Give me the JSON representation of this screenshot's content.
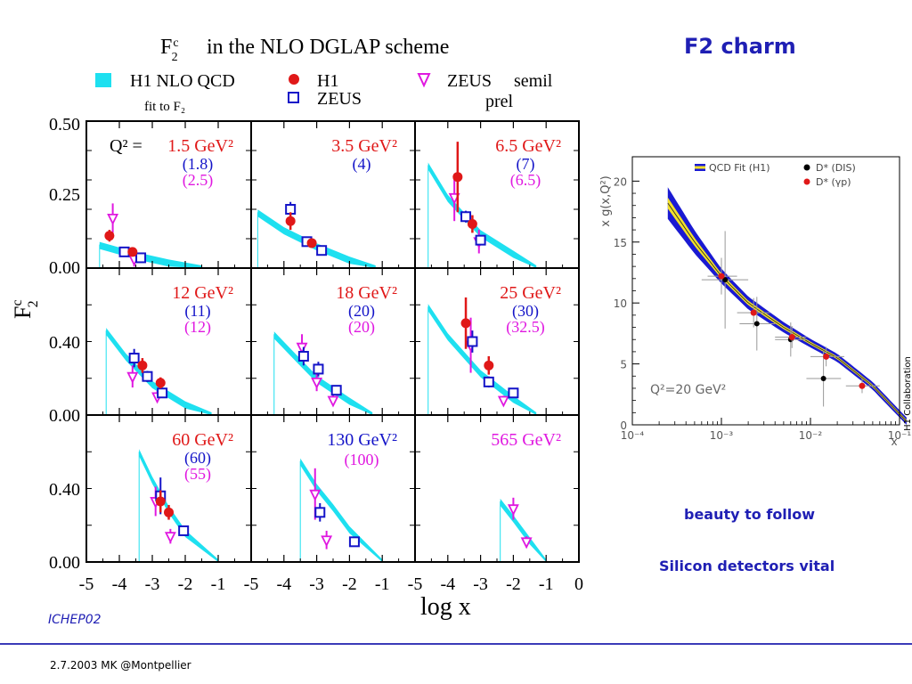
{
  "slide": {
    "title": "F2 charm",
    "note_beauty": "beauty to follow",
    "note_silicon": "Silicon detectors vital",
    "conference": "ICHEP02",
    "footer": "2.7.2003 MK @Montpellier",
    "colors": {
      "title": "#1f1fb4",
      "footer_line": "#3b3bb8"
    }
  },
  "chart_data": [
    {
      "type": "scatter",
      "title": "in the NLO DGLAP scheme",
      "title_symbol": "F2c",
      "xlabel": "log x",
      "ylabel": "F2c",
      "x_ticks": [
        "-5",
        "-4",
        "-3",
        "-2",
        "-1"
      ],
      "x_ticks_last": [
        "-5",
        "-4",
        "-3",
        "-2",
        "-1",
        "0"
      ],
      "y_ticks_row1": [
        "0.00",
        "0.25",
        "0.50"
      ],
      "y_ticks_rows23": [
        "0.00",
        "0.40"
      ],
      "q2_prefix": "Q² =",
      "legend": {
        "band": "H1 NLO QCD",
        "band_sub": "fit to F₂",
        "h1": "H1",
        "zeus": "ZEUS",
        "zeus_semil": "ZEUS",
        "zeus_semil_word": "semil",
        "prel": "prel"
      },
      "colors": {
        "h1": "#e01818",
        "zeus": "#1414c8",
        "zeus_semil": "#e018e0",
        "band": "#1ee0f0"
      },
      "panels": [
        {
          "q2_h1": "1.5 GeV²",
          "q2_zeus": "(1.8)",
          "q2_semil": "(2.5)",
          "ylim": [
            0,
            0.5
          ],
          "band": [
            [
              -4.6,
              0.08
            ],
            [
              -3.5,
              0.045
            ],
            [
              -2.5,
              0.02
            ],
            [
              -1.5,
              0.0
            ]
          ],
          "h1": [
            {
              "x": -4.3,
              "y": 0.11,
              "e": 0.02
            },
            {
              "x": -3.6,
              "y": 0.055,
              "e": 0.012
            }
          ],
          "zeus": [
            {
              "x": -3.85,
              "y": 0.055,
              "e": 0.008
            },
            {
              "x": -3.35,
              "y": 0.035,
              "e": 0.008
            }
          ],
          "semil": [
            {
              "x": -4.2,
              "y": 0.17,
              "e": 0.05
            },
            {
              "x": -3.55,
              "y": 0.03,
              "e": 0.025
            }
          ]
        },
        {
          "q2_h1": "3.5 GeV²",
          "q2_zeus": "(4)",
          "q2_semil": "",
          "ylim": [
            0,
            0.5
          ],
          "band": [
            [
              -4.8,
              0.19
            ],
            [
              -4.0,
              0.13
            ],
            [
              -3.0,
              0.075
            ],
            [
              -2.0,
              0.03
            ],
            [
              -1.2,
              0.0
            ]
          ],
          "h1": [
            {
              "x": -3.8,
              "y": 0.16,
              "e": 0.03
            },
            {
              "x": -3.15,
              "y": 0.085,
              "e": 0.015
            }
          ],
          "zeus": [
            {
              "x": -3.8,
              "y": 0.2,
              "e": 0.025
            },
            {
              "x": -3.3,
              "y": 0.09,
              "e": 0.01
            },
            {
              "x": -2.85,
              "y": 0.06,
              "e": 0.01
            }
          ],
          "semil": []
        },
        {
          "q2_h1": "6.5 GeV²",
          "q2_zeus": "(7)",
          "q2_semil": "(6.5)",
          "ylim": [
            0,
            0.5
          ],
          "band": [
            [
              -4.6,
              0.35
            ],
            [
              -4.0,
              0.24
            ],
            [
              -3.0,
              0.12
            ],
            [
              -2.0,
              0.05
            ],
            [
              -1.3,
              0.0
            ]
          ],
          "h1": [
            {
              "x": -3.7,
              "y": 0.31,
              "e": 0.12
            },
            {
              "x": -3.25,
              "y": 0.15,
              "e": 0.03
            }
          ],
          "zeus": [
            {
              "x": -3.45,
              "y": 0.175,
              "e": 0.02
            },
            {
              "x": -3.0,
              "y": 0.095,
              "e": 0.015
            }
          ],
          "semil": [
            {
              "x": -3.8,
              "y": 0.24,
              "e": 0.08
            },
            {
              "x": -3.05,
              "y": 0.09,
              "e": 0.04
            }
          ]
        },
        {
          "q2_h1": "12 GeV²",
          "q2_zeus": "(11)",
          "q2_semil": "(12)",
          "ylim": [
            0,
            0.8
          ],
          "band": [
            [
              -4.4,
              0.46
            ],
            [
              -3.8,
              0.32
            ],
            [
              -3.0,
              0.17
            ],
            [
              -2.0,
              0.06
            ],
            [
              -1.2,
              0.0
            ]
          ],
          "h1": [
            {
              "x": -3.3,
              "y": 0.27,
              "e": 0.04
            },
            {
              "x": -2.75,
              "y": 0.175,
              "e": 0.03
            }
          ],
          "zeus": [
            {
              "x": -3.55,
              "y": 0.31,
              "e": 0.05
            },
            {
              "x": -3.15,
              "y": 0.21,
              "e": 0.03
            },
            {
              "x": -2.7,
              "y": 0.12,
              "e": 0.02
            }
          ],
          "semil": [
            {
              "x": -3.6,
              "y": 0.21,
              "e": 0.06
            },
            {
              "x": -2.85,
              "y": 0.1,
              "e": 0.03
            }
          ]
        },
        {
          "q2_h1": "18 GeV²",
          "q2_zeus": "(20)",
          "q2_semil": "(20)",
          "ylim": [
            0,
            0.8
          ],
          "band": [
            [
              -4.3,
              0.44
            ],
            [
              -3.6,
              0.31
            ],
            [
              -3.0,
              0.2
            ],
            [
              -2.0,
              0.08
            ],
            [
              -1.3,
              0.0
            ]
          ],
          "h1": [],
          "zeus": [
            {
              "x": -3.4,
              "y": 0.32,
              "e": 0.05
            },
            {
              "x": -2.95,
              "y": 0.25,
              "e": 0.04
            },
            {
              "x": -2.4,
              "y": 0.135,
              "e": 0.02
            }
          ],
          "semil": [
            {
              "x": -3.45,
              "y": 0.37,
              "e": 0.07
            },
            {
              "x": -3.0,
              "y": 0.18,
              "e": 0.05
            },
            {
              "x": -2.5,
              "y": 0.08,
              "e": 0.03
            }
          ]
        },
        {
          "q2_h1": "25 GeV²",
          "q2_zeus": "(30)",
          "q2_semil": "(32.5)",
          "ylim": [
            0,
            0.8
          ],
          "band": [
            [
              -4.6,
              0.59
            ],
            [
              -4.0,
              0.43
            ],
            [
              -3.0,
              0.23
            ],
            [
              -2.0,
              0.09
            ],
            [
              -1.3,
              0.0
            ]
          ],
          "h1": [
            {
              "x": -3.45,
              "y": 0.5,
              "e": 0.14
            },
            {
              "x": -2.75,
              "y": 0.27,
              "e": 0.05
            }
          ],
          "zeus": [
            {
              "x": -3.25,
              "y": 0.4,
              "e": 0.06
            },
            {
              "x": -2.75,
              "y": 0.18,
              "e": 0.03
            },
            {
              "x": -2.0,
              "y": 0.12,
              "e": 0.015
            }
          ],
          "semil": [
            {
              "x": -3.3,
              "y": 0.38,
              "e": 0.15
            },
            {
              "x": -2.3,
              "y": 0.08,
              "e": 0.025
            }
          ]
        },
        {
          "q2_h1": "60 GeV²",
          "q2_zeus": "(60)",
          "q2_semil": "(55)",
          "ylim": [
            0,
            0.8
          ],
          "band": [
            [
              -3.4,
              0.6
            ],
            [
              -3.0,
              0.45
            ],
            [
              -2.5,
              0.29
            ],
            [
              -2.0,
              0.16
            ],
            [
              -1.0,
              0.0
            ]
          ],
          "h1": [
            {
              "x": -2.75,
              "y": 0.33,
              "e": 0.06
            },
            {
              "x": -2.5,
              "y": 0.27,
              "e": 0.04
            }
          ],
          "zeus": [
            {
              "x": -2.75,
              "y": 0.36,
              "e": 0.1
            },
            {
              "x": -2.05,
              "y": 0.17,
              "e": 0.02
            }
          ],
          "semil": [
            {
              "x": -2.9,
              "y": 0.33,
              "e": 0.08
            },
            {
              "x": -2.45,
              "y": 0.14,
              "e": 0.04
            }
          ]
        },
        {
          "q2_h1": "",
          "q2_zeus": "130 GeV²",
          "q2_semil": "(100)",
          "ylim": [
            0,
            0.8
          ],
          "band": [
            [
              -3.5,
              0.55
            ],
            [
              -3.0,
              0.41
            ],
            [
              -2.5,
              0.3
            ],
            [
              -2.0,
              0.18
            ],
            [
              -1.0,
              0.0
            ]
          ],
          "h1": [],
          "zeus": [
            {
              "x": -2.9,
              "y": 0.27,
              "e": 0.05
            },
            {
              "x": -1.85,
              "y": 0.11,
              "e": 0.015
            }
          ],
          "semil": [
            {
              "x": -3.05,
              "y": 0.37,
              "e": 0.14
            },
            {
              "x": -2.7,
              "y": 0.12,
              "e": 0.05
            }
          ]
        },
        {
          "q2_h1": "",
          "q2_zeus": "",
          "q2_semil": "565 GeV²",
          "ylim": [
            0,
            0.8
          ],
          "band": [
            [
              -2.4,
              0.33
            ],
            [
              -2.0,
              0.24
            ],
            [
              -1.5,
              0.12
            ],
            [
              -1.0,
              0.0
            ]
          ],
          "h1": [],
          "zeus": [],
          "semil": [
            {
              "x": -2.0,
              "y": 0.29,
              "e": 0.06
            },
            {
              "x": -1.6,
              "y": 0.11,
              "e": 0.03
            }
          ]
        }
      ]
    },
    {
      "type": "scatter",
      "title": "",
      "xlabel": "x",
      "ylabel": "x g(x,Q²)",
      "xscale": "log",
      "xlim": [
        0.0001,
        0.1
      ],
      "ylim": [
        0,
        22
      ],
      "x_ticks": [
        "10⁻⁴",
        "10⁻³",
        "10⁻²",
        "10⁻¹"
      ],
      "y_ticks": [
        "0",
        "5",
        "10",
        "15",
        "20"
      ],
      "annotation": "Q²=20 GeV²",
      "collaboration": "H1 Collaboration",
      "legend": {
        "band": "QCD Fit (H1)",
        "dis": "D* (DIS)",
        "gp": "D* (γp)"
      },
      "colors": {
        "band": "#1a1ad2",
        "inner": "#f2e02a",
        "dis": "#000000",
        "gp": "#e01818"
      },
      "band_center": [
        [
          0.00025,
          18.2
        ],
        [
          0.0005,
          15.0
        ],
        [
          0.001,
          12.2
        ],
        [
          0.002,
          10.0
        ],
        [
          0.005,
          8.0
        ],
        [
          0.01,
          6.7
        ],
        [
          0.02,
          5.5
        ],
        [
          0.05,
          3.2
        ],
        [
          0.1,
          0.9
        ],
        [
          0.12,
          0.3
        ]
      ],
      "band_halfwidth": [
        [
          0.00025,
          1.3
        ],
        [
          0.001,
          0.6
        ],
        [
          0.01,
          0.35
        ],
        [
          0.12,
          0.3
        ]
      ],
      "dis_points": [
        {
          "x": 0.0011,
          "y": 11.9,
          "e": 4.0,
          "ex": [
            0.0006,
            0.002
          ]
        },
        {
          "x": 0.0025,
          "y": 8.3,
          "e": 2.2,
          "ex": [
            0.0016,
            0.004
          ]
        },
        {
          "x": 0.006,
          "y": 7.0,
          "e": 1.4,
          "ex": [
            0.004,
            0.009
          ]
        },
        {
          "x": 0.014,
          "y": 3.8,
          "e": 2.3,
          "ex": [
            0.009,
            0.022
          ]
        }
      ],
      "gp_points": [
        {
          "x": 0.001,
          "y": 12.2,
          "e": 1.5,
          "ex": [
            0.0007,
            0.0015
          ]
        },
        {
          "x": 0.0023,
          "y": 9.2,
          "e": 1.2,
          "ex": [
            0.0015,
            0.0035
          ]
        },
        {
          "x": 0.0062,
          "y": 7.2,
          "e": 0.9,
          "ex": [
            0.004,
            0.009
          ]
        },
        {
          "x": 0.015,
          "y": 5.6,
          "e": 0.8,
          "ex": [
            0.01,
            0.024
          ]
        },
        {
          "x": 0.038,
          "y": 3.2,
          "e": 0.6,
          "ex": [
            0.025,
            0.06
          ]
        }
      ]
    }
  ]
}
